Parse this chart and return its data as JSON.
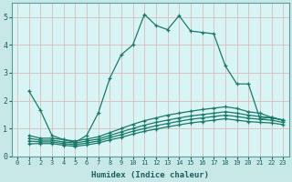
{
  "xlabel": "Humidex (Indice chaleur)",
  "ylabel": "",
  "xlim": [
    -0.5,
    23.5
  ],
  "ylim": [
    0,
    5.5
  ],
  "xticks": [
    0,
    1,
    2,
    3,
    4,
    5,
    6,
    7,
    8,
    9,
    10,
    11,
    12,
    13,
    14,
    15,
    16,
    17,
    18,
    19,
    20,
    21,
    22,
    23
  ],
  "yticks": [
    0,
    1,
    2,
    3,
    4,
    5
  ],
  "bg_color": "#c8e8e8",
  "plot_bg_color": "#d8f4f4",
  "grid_color": "#dbbcbc",
  "line_color": "#1a7a6a",
  "lines": [
    {
      "x": [
        1,
        2,
        3,
        4,
        5,
        6,
        7,
        8,
        9,
        10,
        11,
        12,
        13,
        14,
        15,
        16,
        17,
        18,
        19,
        20,
        21,
        22,
        23
      ],
      "y": [
        2.35,
        1.65,
        0.75,
        0.6,
        0.5,
        0.75,
        1.55,
        2.8,
        3.65,
        4.0,
        5.1,
        4.7,
        4.55,
        5.05,
        4.5,
        4.45,
        4.4,
        3.25,
        2.6,
        2.6,
        1.35,
        1.4,
        1.3
      ]
    },
    {
      "x": [
        1,
        2,
        3,
        4,
        5,
        6,
        7,
        8,
        9,
        10,
        11,
        12,
        13,
        14,
        15,
        16,
        17,
        18,
        19,
        20,
        21,
        22,
        23
      ],
      "y": [
        0.75,
        0.65,
        0.65,
        0.6,
        0.55,
        0.62,
        0.7,
        0.85,
        1.0,
        1.15,
        1.28,
        1.38,
        1.48,
        1.55,
        1.62,
        1.68,
        1.73,
        1.78,
        1.72,
        1.6,
        1.55,
        1.4,
        1.3
      ]
    },
    {
      "x": [
        1,
        2,
        3,
        4,
        5,
        6,
        7,
        8,
        9,
        10,
        11,
        12,
        13,
        14,
        15,
        16,
        17,
        18,
        19,
        20,
        21,
        22,
        23
      ],
      "y": [
        0.65,
        0.58,
        0.58,
        0.52,
        0.48,
        0.55,
        0.62,
        0.75,
        0.88,
        1.0,
        1.12,
        1.22,
        1.3,
        1.38,
        1.45,
        1.5,
        1.55,
        1.6,
        1.55,
        1.48,
        1.43,
        1.38,
        1.3
      ]
    },
    {
      "x": [
        1,
        2,
        3,
        4,
        5,
        6,
        7,
        8,
        9,
        10,
        11,
        12,
        13,
        14,
        15,
        16,
        17,
        18,
        19,
        20,
        21,
        22,
        23
      ],
      "y": [
        0.55,
        0.52,
        0.52,
        0.46,
        0.42,
        0.48,
        0.55,
        0.67,
        0.78,
        0.9,
        1.0,
        1.1,
        1.18,
        1.26,
        1.33,
        1.38,
        1.43,
        1.48,
        1.43,
        1.37,
        1.33,
        1.3,
        1.22
      ]
    },
    {
      "x": [
        1,
        2,
        3,
        4,
        5,
        6,
        7,
        8,
        9,
        10,
        11,
        12,
        13,
        14,
        15,
        16,
        17,
        18,
        19,
        20,
        21,
        22,
        23
      ],
      "y": [
        0.45,
        0.46,
        0.46,
        0.4,
        0.36,
        0.41,
        0.48,
        0.59,
        0.68,
        0.8,
        0.9,
        0.98,
        1.06,
        1.13,
        1.2,
        1.25,
        1.3,
        1.35,
        1.3,
        1.25,
        1.22,
        1.2,
        1.14
      ]
    }
  ]
}
